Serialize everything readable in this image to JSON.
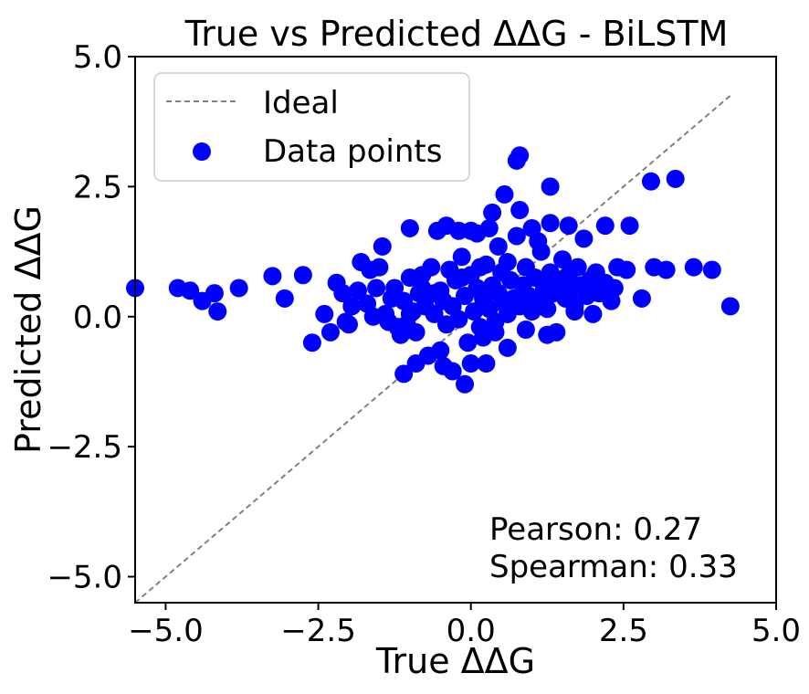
{
  "chart_data": {
    "type": "scatter",
    "title": "True vs Predicted ΔΔG - BiLSTM",
    "xlabel": "True ΔΔG",
    "ylabel": "Predicted ΔΔG",
    "xlim": [
      -5.5,
      5.0
    ],
    "ylim": [
      -5.5,
      5.0
    ],
    "xticks": [
      -5.0,
      -2.5,
      0.0,
      2.5,
      5.0
    ],
    "yticks": [
      -5.0,
      -2.5,
      0.0,
      2.5,
      5.0
    ],
    "xtick_labels": [
      "−5.0",
      "−2.5",
      "0.0",
      "2.5",
      "5.0"
    ],
    "ytick_labels": [
      "−5.0",
      "−2.5",
      "0.0",
      "2.5",
      "5.0"
    ],
    "grid": false,
    "legend": {
      "position": "top-left",
      "entries": [
        {
          "label": "Ideal",
          "kind": "dashed-line",
          "color": "#808080"
        },
        {
          "label": "Data points",
          "kind": "marker",
          "color": "#0000ff"
        }
      ]
    },
    "annotations": [
      "Pearson: 0.27",
      "Spearman: 0.33"
    ],
    "series": [
      {
        "name": "Ideal",
        "kind": "line",
        "color": "#808080",
        "points": [
          [
            -5.5,
            -5.5
          ],
          [
            4.25,
            4.25
          ]
        ]
      },
      {
        "name": "Data points",
        "kind": "scatter",
        "color": "#0000ff",
        "points": [
          [
            -5.5,
            0.55
          ],
          [
            -4.8,
            0.55
          ],
          [
            -4.6,
            0.5
          ],
          [
            -4.4,
            0.3
          ],
          [
            -4.2,
            0.45
          ],
          [
            -4.15,
            0.1
          ],
          [
            -3.8,
            0.55
          ],
          [
            -3.25,
            0.78
          ],
          [
            -3.05,
            0.35
          ],
          [
            -2.75,
            0.8
          ],
          [
            -2.6,
            -0.5
          ],
          [
            -2.3,
            -0.3
          ],
          [
            -2.2,
            0.65
          ],
          [
            -2.1,
            0.45
          ],
          [
            -2.05,
            -0.1
          ],
          [
            -1.95,
            0.2
          ],
          [
            -1.85,
            0.5
          ],
          [
            -1.8,
            1.05
          ],
          [
            -1.7,
            0.25
          ],
          [
            -1.65,
            0.9
          ],
          [
            -1.6,
            0.0
          ],
          [
            -1.5,
            0.95
          ],
          [
            -1.45,
            1.35
          ],
          [
            -1.4,
            0.05
          ],
          [
            -1.35,
            -0.1
          ],
          [
            -1.3,
            0.35
          ],
          [
            -1.25,
            0.55
          ],
          [
            -1.2,
            -0.2
          ],
          [
            -1.15,
            -0.35
          ],
          [
            -1.1,
            0.3
          ],
          [
            -1.05,
            -0.15
          ],
          [
            -1.0,
            0.75
          ],
          [
            -0.95,
            0.1
          ],
          [
            -0.9,
            -0.3
          ],
          [
            -0.85,
            0.45
          ],
          [
            -0.8,
            0.8
          ],
          [
            -0.75,
            0.2
          ],
          [
            -0.7,
            -0.75
          ],
          [
            -0.6,
            0.05
          ],
          [
            -0.55,
            1.65
          ],
          [
            -0.5,
            0.5
          ],
          [
            -0.45,
            0.3
          ],
          [
            -0.4,
            -0.15
          ],
          [
            -0.35,
            0.9
          ],
          [
            -0.3,
            0.2
          ],
          [
            -0.25,
            0.7
          ],
          [
            -0.2,
            -0.05
          ],
          [
            -0.15,
            1.15
          ],
          [
            -0.1,
            0.4
          ],
          [
            -0.05,
            -0.5
          ],
          [
            0.0,
            0.8
          ],
          [
            0.05,
            0.1
          ],
          [
            0.1,
            0.55
          ],
          [
            0.15,
            -0.2
          ],
          [
            0.2,
            0.35
          ],
          [
            0.25,
            1.0
          ],
          [
            0.3,
            0.15
          ],
          [
            0.35,
            0.6
          ],
          [
            0.4,
            -0.1
          ],
          [
            0.45,
            0.45
          ],
          [
            0.5,
            0.85
          ],
          [
            0.55,
            0.25
          ],
          [
            0.6,
            0.05
          ],
          [
            0.65,
            0.7
          ],
          [
            0.7,
            0.35
          ],
          [
            0.75,
            1.55
          ],
          [
            0.8,
            0.2
          ],
          [
            0.85,
            0.6
          ],
          [
            0.9,
            0.95
          ],
          [
            0.95,
            0.4
          ],
          [
            1.0,
            0.1
          ],
          [
            1.05,
            0.75
          ],
          [
            1.1,
            0.3
          ],
          [
            1.15,
            1.25
          ],
          [
            1.2,
            0.55
          ],
          [
            1.25,
            0.15
          ],
          [
            1.3,
            0.85
          ],
          [
            1.35,
            0.45
          ],
          [
            1.4,
            -0.3
          ],
          [
            1.45,
            0.65
          ],
          [
            1.5,
            1.1
          ],
          [
            1.55,
            0.35
          ],
          [
            1.6,
            0.8
          ],
          [
            1.65,
            0.5
          ],
          [
            1.7,
            0.2
          ],
          [
            1.75,
            0.95
          ],
          [
            1.8,
            0.6
          ],
          [
            1.85,
            1.5
          ],
          [
            1.9,
            0.4
          ],
          [
            1.95,
            0.7
          ],
          [
            2.0,
            0.05
          ],
          [
            2.05,
            0.85
          ],
          [
            2.1,
            0.45
          ],
          [
            2.2,
            0.65
          ],
          [
            2.3,
            0.3
          ],
          [
            2.4,
            0.95
          ],
          [
            2.55,
            0.9
          ],
          [
            2.6,
            1.75
          ],
          [
            2.8,
            0.35
          ],
          [
            2.95,
            2.6
          ],
          [
            3.0,
            0.95
          ],
          [
            3.2,
            0.9
          ],
          [
            3.35,
            2.65
          ],
          [
            3.65,
            0.95
          ],
          [
            3.95,
            0.9
          ],
          [
            4.25,
            0.2
          ],
          [
            -0.5,
            -0.65
          ],
          [
            -0.45,
            -0.95
          ],
          [
            -0.3,
            -1.05
          ],
          [
            -0.1,
            -1.3
          ],
          [
            0.0,
            -0.9
          ],
          [
            0.25,
            -0.9
          ],
          [
            0.6,
            -0.6
          ],
          [
            -1.1,
            -1.1
          ],
          [
            -0.9,
            -0.9
          ],
          [
            0.35,
            2.0
          ],
          [
            0.55,
            2.35
          ],
          [
            0.75,
            3.0
          ],
          [
            0.8,
            3.1
          ],
          [
            1.3,
            2.5
          ],
          [
            0.8,
            2.05
          ],
          [
            -1.0,
            1.7
          ],
          [
            -0.4,
            1.75
          ],
          [
            -0.2,
            1.65
          ],
          [
            0.0,
            1.65
          ],
          [
            0.1,
            1.6
          ],
          [
            0.3,
            1.7
          ],
          [
            1.0,
            1.7
          ],
          [
            1.3,
            1.8
          ],
          [
            1.6,
            1.75
          ],
          [
            2.2,
            1.75
          ],
          [
            -2.4,
            0.05
          ],
          [
            -2.0,
            -0.15
          ],
          [
            -1.55,
            0.55
          ],
          [
            -1.0,
            0.05
          ],
          [
            -0.8,
            0.55
          ],
          [
            -0.6,
            0.45
          ],
          [
            0.2,
            -0.4
          ],
          [
            0.4,
            -0.3
          ],
          [
            0.9,
            -0.25
          ],
          [
            1.25,
            -0.35
          ],
          [
            1.7,
            0.1
          ],
          [
            2.35,
            0.55
          ],
          [
            0.45,
            1.35
          ],
          [
            0.6,
            1.05
          ],
          [
            -0.65,
            0.95
          ],
          [
            -0.15,
            0.75
          ],
          [
            0.15,
            0.95
          ],
          [
            1.1,
            1.45
          ],
          [
            1.55,
            0.75
          ],
          [
            2.0,
            0.75
          ]
        ]
      }
    ]
  }
}
